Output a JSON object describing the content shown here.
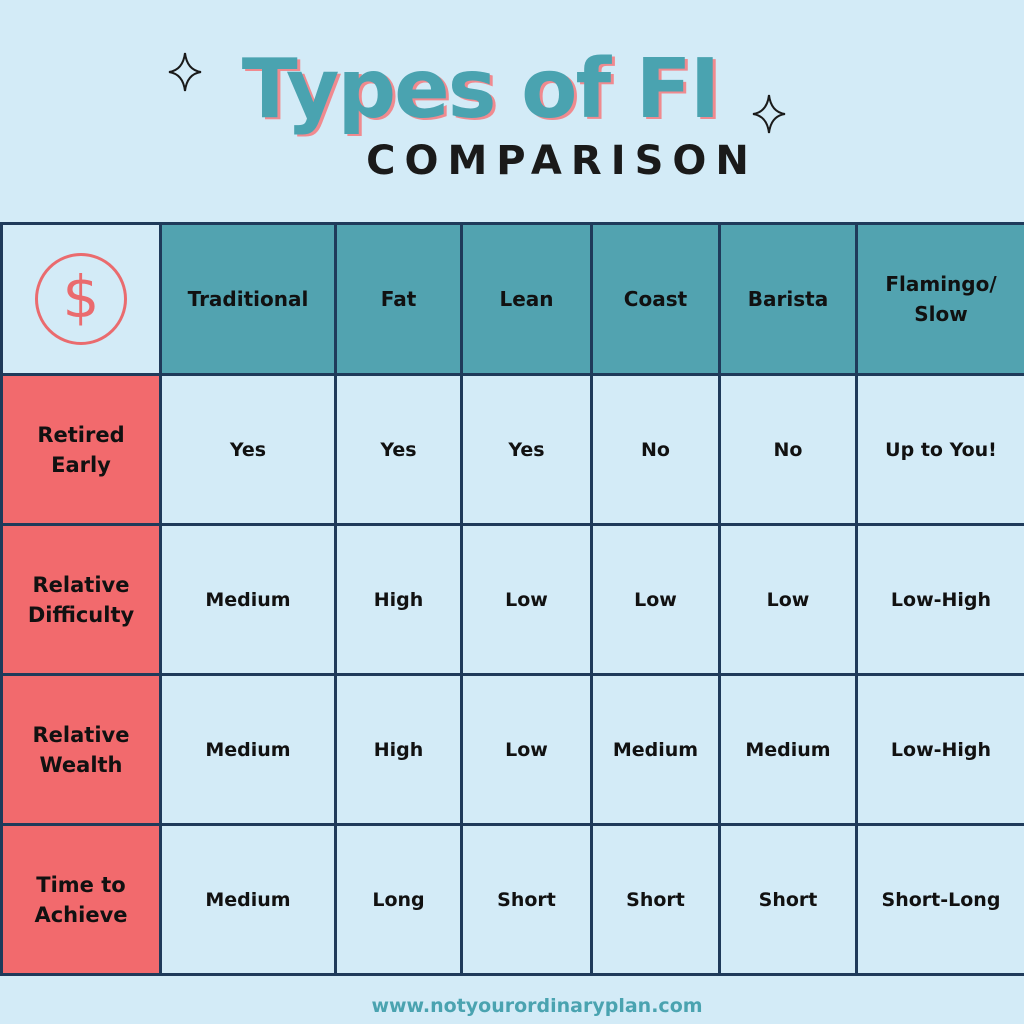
{
  "header": {
    "title": "Types of FI",
    "subtitle": "COMPARISON",
    "icons": [
      "sparkle-icon",
      "sparkle-icon"
    ]
  },
  "table": {
    "corner_icon": "dollar-icon",
    "corner_symbol": "$",
    "columns": [
      "Traditional",
      "Fat",
      "Lean",
      "Coast",
      "Barista",
      "Flamingo/ Slow"
    ],
    "rows": [
      {
        "label": "Retired Early",
        "values": [
          "Yes",
          "Yes",
          "Yes",
          "No",
          "No",
          "Up to You!"
        ]
      },
      {
        "label": "Relative Difficulty",
        "values": [
          "Medium",
          "High",
          "Low",
          "Low",
          "Low",
          "Low-High"
        ]
      },
      {
        "label": "Relative Wealth",
        "values": [
          "Medium",
          "High",
          "Low",
          "Medium",
          "Medium",
          "Low-High"
        ]
      },
      {
        "label": "Time to Achieve",
        "values": [
          "Medium",
          "Long",
          "Short",
          "Short",
          "Short",
          "Short-Long"
        ]
      }
    ]
  },
  "footer": {
    "url": "www.notyourordinaryplan.com"
  },
  "colors": {
    "background": "#d3ebf7",
    "header_teal": "#52a3b0",
    "row_label_red": "#f26a6d",
    "border_navy": "#1f3a5a",
    "title_teal": "#4aa3b0"
  }
}
